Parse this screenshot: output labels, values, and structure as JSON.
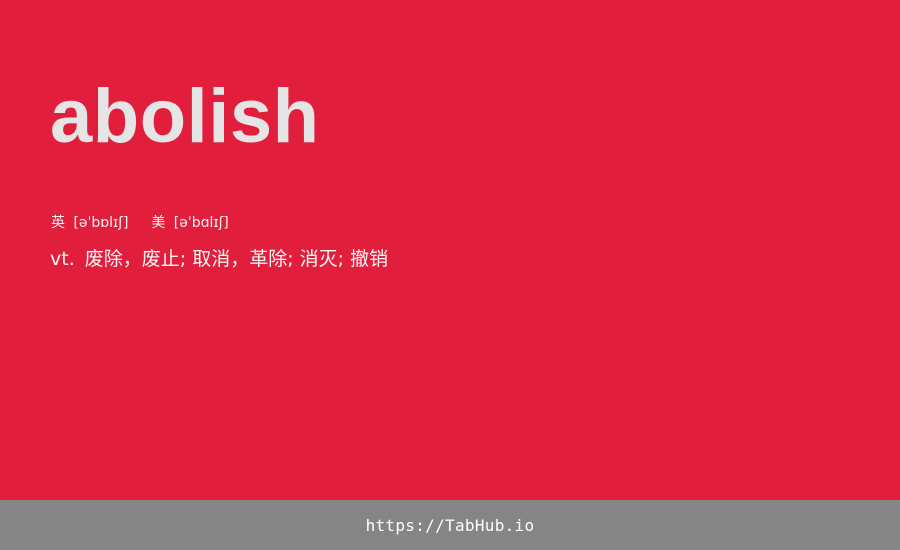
{
  "word": "abolish",
  "phonetics": {
    "uk_label": "英",
    "uk_ipa": "[əˈbɒlɪʃ]",
    "us_label": "美",
    "us_ipa": "[əˈbɑlɪʃ]"
  },
  "definition": {
    "pos": "vt.",
    "meaning": "废除，废止; 取消，革除; 消灭; 撤销"
  },
  "footer": {
    "link": "https://TabHub.io"
  },
  "colors": {
    "background": "#e11f3d",
    "word": "#e5e5e5",
    "footer_bar": "#858585",
    "footer_text": "#ffffff"
  }
}
